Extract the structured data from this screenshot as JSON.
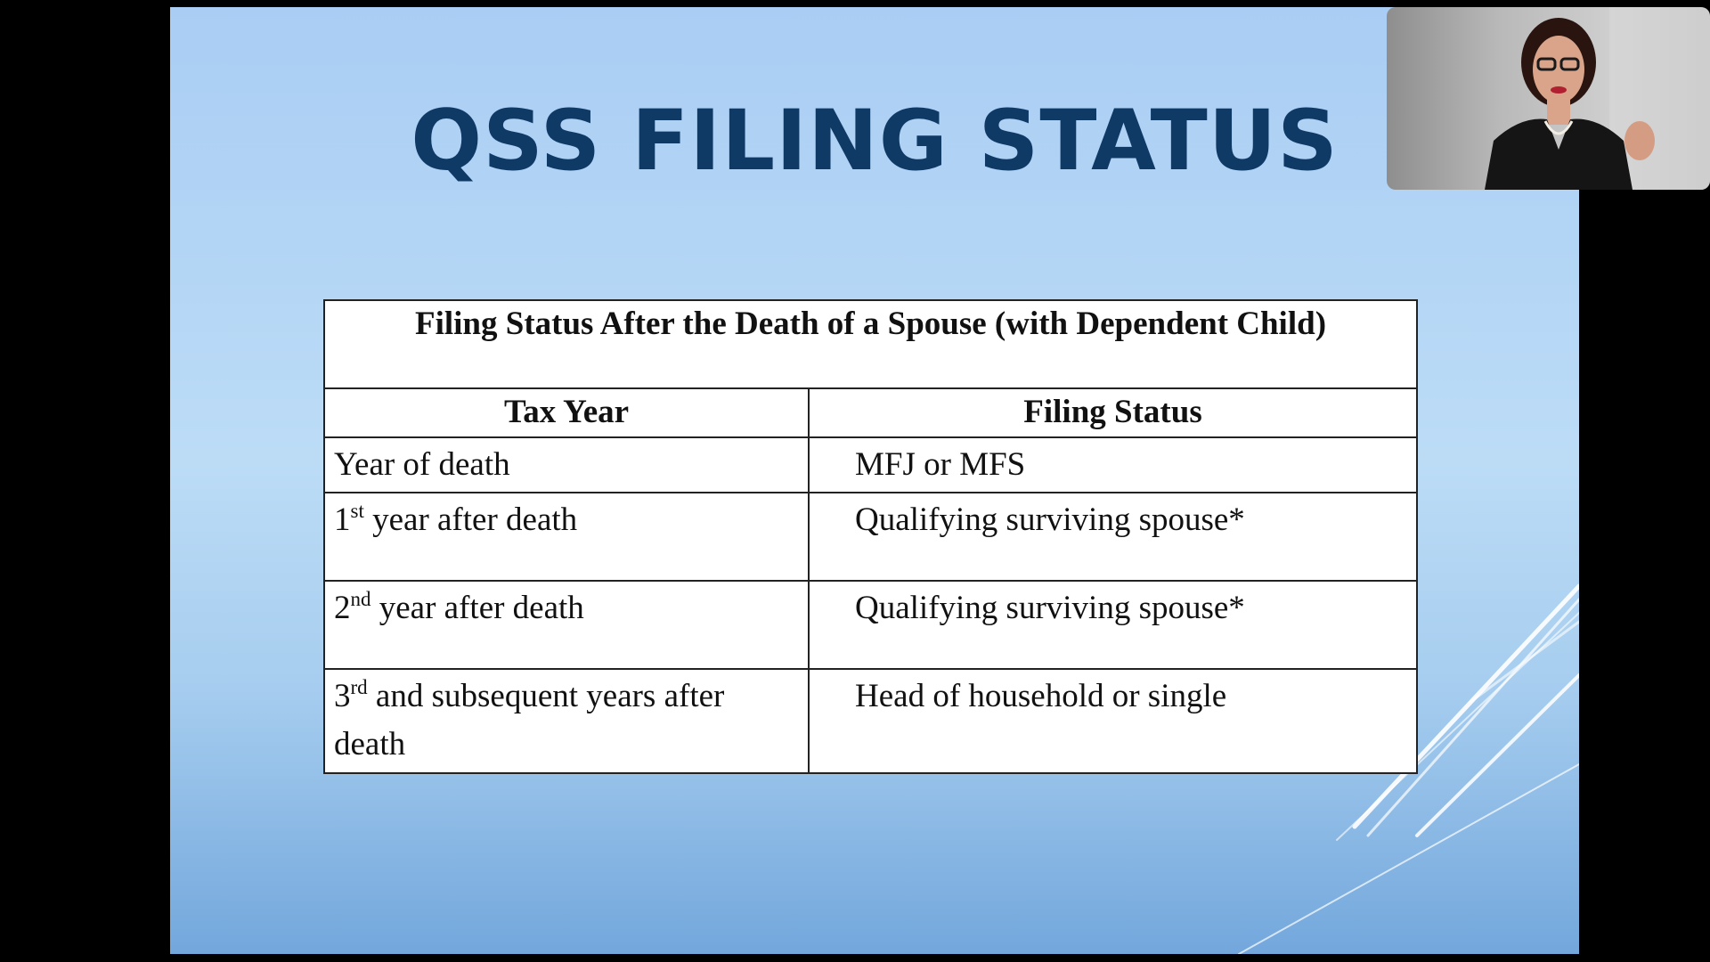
{
  "slide": {
    "title": "QSS FILING STATUS"
  },
  "table": {
    "caption": "Filing Status After the Death of a Spouse (with Dependent Child)",
    "headers": [
      "Tax Year",
      "Filing Status"
    ],
    "rows": [
      {
        "year_lead": "Year of death",
        "year_sup": "",
        "year_rest": "",
        "status": "MFJ or MFS"
      },
      {
        "year_lead": "1",
        "year_sup": "st",
        "year_rest": " year after death",
        "status": "Qualifying surviving spouse*"
      },
      {
        "year_lead": "2",
        "year_sup": "nd",
        "year_rest": " year after death",
        "status": "Qualifying surviving spouse*"
      },
      {
        "year_lead": "3",
        "year_sup": "rd",
        "year_rest": " and subsequent years after death",
        "status": "Head of household or single"
      }
    ]
  },
  "colors": {
    "title": "#0f3a66",
    "background_top": "#a9cdf4",
    "background_bottom": "#73a7dc"
  },
  "webcam": {
    "icon": "presenter-video"
  }
}
